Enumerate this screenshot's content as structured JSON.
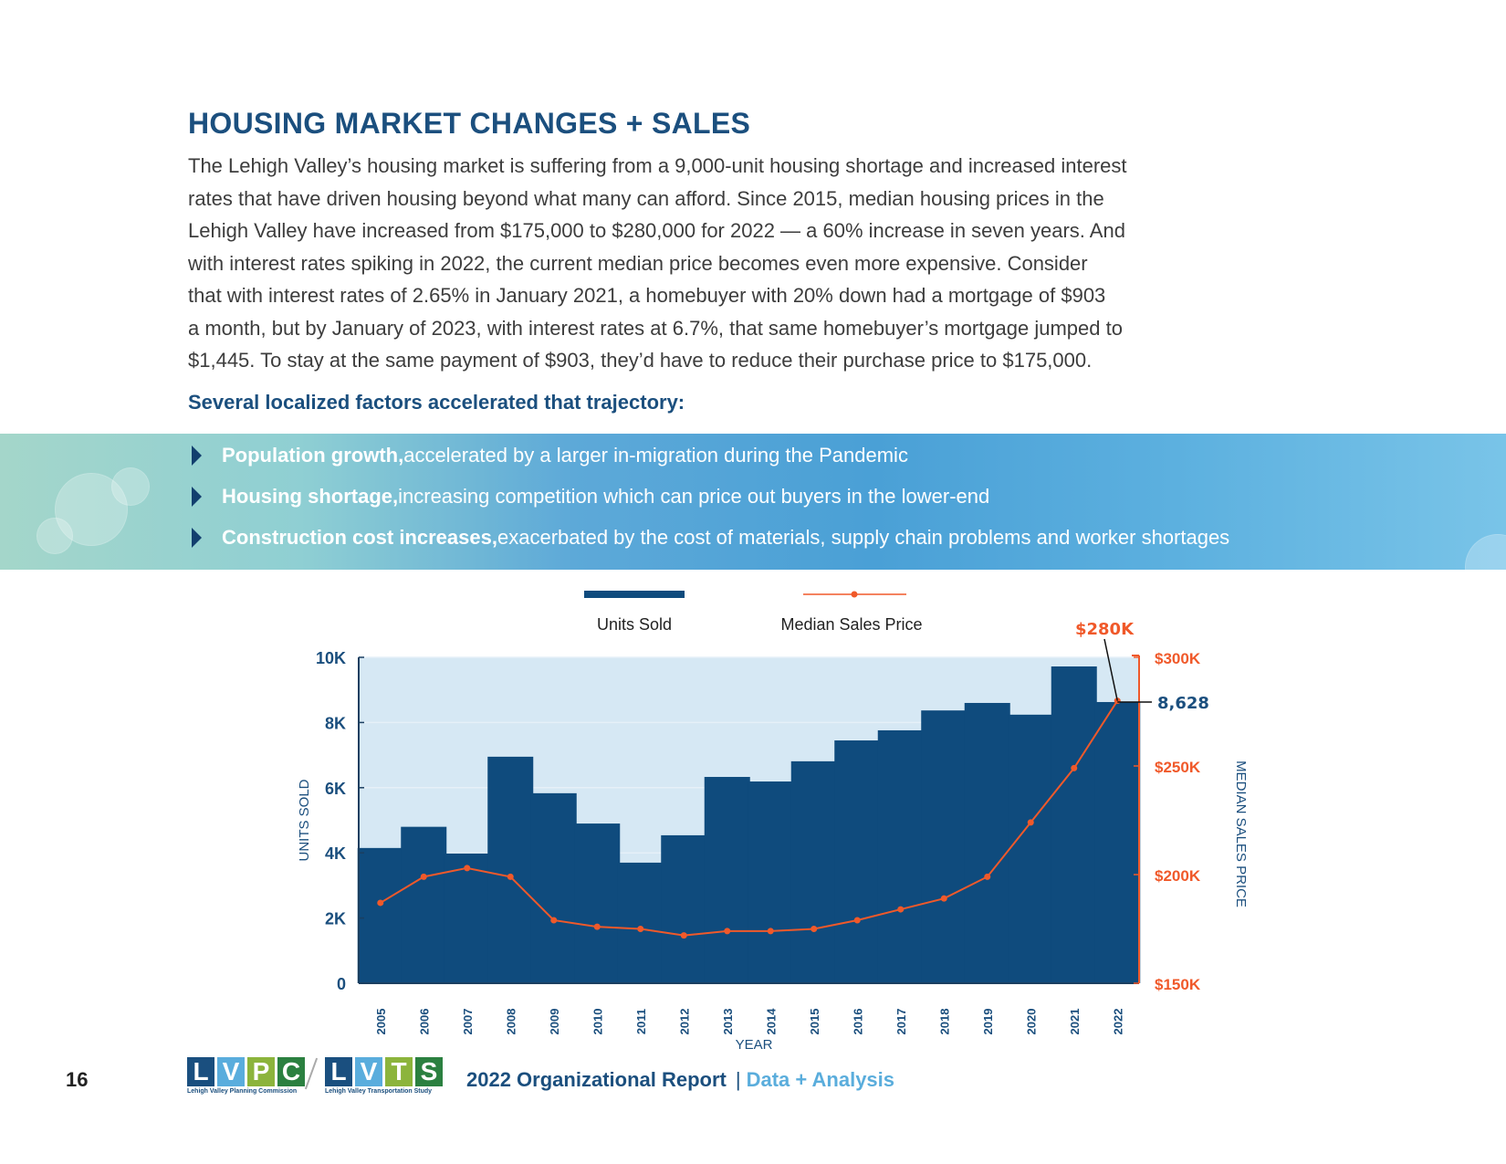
{
  "page": {
    "heading": "HOUSING MARKET CHANGES + SALES",
    "paragraph_lines": [
      "The Lehigh Valley’s housing market is suffering from a 9,000-unit housing shortage and increased interest",
      "rates that have driven housing beyond what many can afford. Since 2015, median housing prices in the",
      "Lehigh Valley have increased from $175,000 to $280,000 for 2022 — a 60% increase in seven years. And",
      "with interest rates spiking in 2022, the current median price becomes even more expensive. Consider",
      "that with interest rates of 2.65% in January 2021, a homebuyer with 20% down had a mortgage of $903",
      "a month, but by January of 2023, with interest rates at 6.7%, that same homebuyer’s mortgage jumped to",
      "$1,445. To stay at the same payment of $903, they’d have to reduce their purchase price to $175,000."
    ],
    "subheading": "Several localized factors accelerated that trajectory:",
    "bullets": [
      {
        "bold": "Population growth,",
        "text": " accelerated by a larger in-migration during the Pandemic",
        "icon": "chevron-right-icon"
      },
      {
        "bold": "Housing shortage,",
        "text": " increasing competition which can price out buyers in the lower-end",
        "icon": "chevron-right-icon"
      },
      {
        "bold": "Construction cost increases,",
        "text": " exacerbated by the cost of materials, supply chain problems and worker shortages",
        "icon": "chevron-right-icon"
      }
    ]
  },
  "footer": {
    "page_number": "16",
    "logo1": {
      "letters": [
        "L",
        "V",
        "P",
        "C"
      ],
      "caption": "Lehigh Valley Planning Commission"
    },
    "logo2": {
      "letters": [
        "L",
        "V",
        "T",
        "S"
      ],
      "caption": "Lehigh Valley Transportation Study"
    },
    "report_title": "2022 Organizational Report",
    "separator": "|",
    "section": "Data + Analysis"
  },
  "colors": {
    "brand_blue": "#1b4f7e",
    "bar_blue": "#0f4b7d",
    "price_orange": "#f0592a",
    "plot_bg": "#d6e8f4",
    "logo_colors": [
      "#1a4f7f",
      "#5aaddd",
      "#8cb43c",
      "#2b8040"
    ]
  },
  "chart_data": {
    "type": "bar",
    "title": "",
    "categories": [
      "2005",
      "2006",
      "2007",
      "2008",
      "2009",
      "2010",
      "2011",
      "2012",
      "2013",
      "2014",
      "2015",
      "2016",
      "2017",
      "2018",
      "2019",
      "2020",
      "2021",
      "2022"
    ],
    "series": [
      {
        "name": "Units Sold",
        "type": "bar",
        "axis": "left",
        "values": [
          4150,
          4800,
          3980,
          6950,
          5830,
          4900,
          3700,
          4540,
          6330,
          6190,
          6810,
          7450,
          7760,
          8370,
          8600,
          8240,
          9720,
          8628
        ]
      },
      {
        "name": "Median Sales Price",
        "type": "line",
        "axis": "right",
        "values": [
          187000,
          199000,
          203000,
          199000,
          179000,
          176000,
          175000,
          172000,
          174000,
          174000,
          175000,
          179000,
          184000,
          189000,
          199000,
          224000,
          249000,
          280000
        ]
      }
    ],
    "xlabel": "YEAR",
    "ylabel": "UNITS SOLD",
    "y2label": "MEDIAN SALES PRICE",
    "ylim": [
      0,
      10000
    ],
    "y2lim": [
      150000,
      300000
    ],
    "yticks": [
      "0",
      "2K",
      "4K",
      "6K",
      "8K",
      "10K"
    ],
    "ytick_values": [
      0,
      2000,
      4000,
      6000,
      8000,
      10000
    ],
    "y2ticks": [
      "$150K",
      "$200K",
      "$250K",
      "$300K"
    ],
    "y2tick_values": [
      150000,
      200000,
      250000,
      300000
    ],
    "legend": {
      "position": "top-center",
      "entries": [
        "Units Sold",
        "Median Sales Price"
      ]
    },
    "annotations": [
      {
        "text": "$280K",
        "target": "Median Sales Price",
        "category": "2022"
      },
      {
        "text": "8,628",
        "target": "Units Sold",
        "category": "2022"
      }
    ],
    "grid": true
  }
}
